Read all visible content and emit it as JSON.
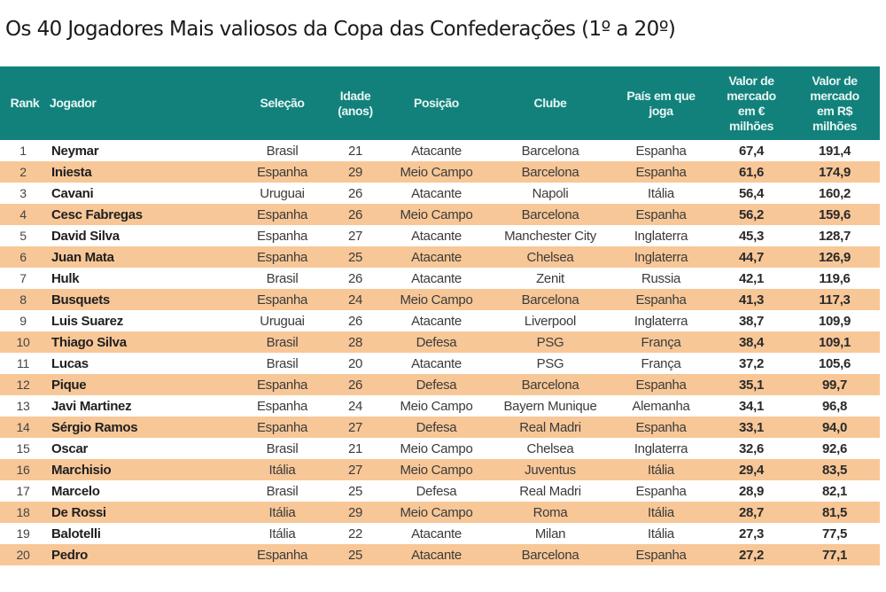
{
  "title": "Os 40 Jogadores Mais valiosos da Copa das Confederações (1º a 20º)",
  "colors": {
    "header_bg": "#12817b",
    "header_text": "#e8f6f4",
    "row_alt_bg": "#f8c797",
    "row_bg": "#ffffff"
  },
  "table": {
    "headers": {
      "rank": "Rank",
      "jogador": "Jogador",
      "selecao": "Seleção",
      "idade_1": "Idade",
      "idade_2": "(anos)",
      "posicao": "Posição",
      "clube": "Clube",
      "pais_1": "País em que",
      "pais_2": "joga",
      "eur_1": "Valor de",
      "eur_2": "mercado",
      "eur_3": "em €",
      "eur_4": "milhões",
      "brl_1": "Valor de",
      "brl_2": "mercado",
      "brl_3": "em R$",
      "brl_4": "milhões"
    },
    "rows": [
      {
        "rank": "1",
        "jogador": "Neymar",
        "selecao": "Brasil",
        "idade": "21",
        "posicao": "Atacante",
        "clube": "Barcelona",
        "pais": "Espanha",
        "eur": "67,4",
        "brl": "191,4"
      },
      {
        "rank": "2",
        "jogador": "Iniesta",
        "selecao": "Espanha",
        "idade": "29",
        "posicao": "Meio Campo",
        "clube": "Barcelona",
        "pais": "Espanha",
        "eur": "61,6",
        "brl": "174,9"
      },
      {
        "rank": "3",
        "jogador": "Cavani",
        "selecao": "Uruguai",
        "idade": "26",
        "posicao": "Atacante",
        "clube": "Napoli",
        "pais": "Itália",
        "eur": "56,4",
        "brl": "160,2"
      },
      {
        "rank": "4",
        "jogador": "Cesc Fabregas",
        "selecao": "Espanha",
        "idade": "26",
        "posicao": "Meio Campo",
        "clube": "Barcelona",
        "pais": "Espanha",
        "eur": "56,2",
        "brl": "159,6"
      },
      {
        "rank": "5",
        "jogador": "David Silva",
        "selecao": "Espanha",
        "idade": "27",
        "posicao": "Atacante",
        "clube": "Manchester City",
        "pais": "Inglaterra",
        "eur": "45,3",
        "brl": "128,7"
      },
      {
        "rank": "6",
        "jogador": "Juan Mata",
        "selecao": "Espanha",
        "idade": "25",
        "posicao": "Atacante",
        "clube": "Chelsea",
        "pais": "Inglaterra",
        "eur": "44,7",
        "brl": "126,9"
      },
      {
        "rank": "7",
        "jogador": "Hulk",
        "selecao": "Brasil",
        "idade": "26",
        "posicao": "Atacante",
        "clube": "Zenit",
        "pais": "Russia",
        "eur": "42,1",
        "brl": "119,6"
      },
      {
        "rank": "8",
        "jogador": "Busquets",
        "selecao": "Espanha",
        "idade": "24",
        "posicao": "Meio Campo",
        "clube": "Barcelona",
        "pais": "Espanha",
        "eur": "41,3",
        "brl": "117,3"
      },
      {
        "rank": "9",
        "jogador": "Luis Suarez",
        "selecao": "Uruguai",
        "idade": "26",
        "posicao": "Atacante",
        "clube": "Liverpool",
        "pais": "Inglaterra",
        "eur": "38,7",
        "brl": "109,9"
      },
      {
        "rank": "10",
        "jogador": "Thiago Silva",
        "selecao": "Brasil",
        "idade": "28",
        "posicao": "Defesa",
        "clube": "PSG",
        "pais": "França",
        "eur": "38,4",
        "brl": "109,1"
      },
      {
        "rank": "11",
        "jogador": "Lucas",
        "selecao": "Brasil",
        "idade": "20",
        "posicao": "Atacante",
        "clube": "PSG",
        "pais": "França",
        "eur": "37,2",
        "brl": "105,6"
      },
      {
        "rank": "12",
        "jogador": "Pique",
        "selecao": "Espanha",
        "idade": "26",
        "posicao": "Defesa",
        "clube": "Barcelona",
        "pais": "Espanha",
        "eur": "35,1",
        "brl": "99,7"
      },
      {
        "rank": "13",
        "jogador": "Javi Martinez",
        "selecao": "Espanha",
        "idade": "24",
        "posicao": "Meio Campo",
        "clube": "Bayern Munique",
        "pais": "Alemanha",
        "eur": "34,1",
        "brl": "96,8"
      },
      {
        "rank": "14",
        "jogador": "Sérgio Ramos",
        "selecao": "Espanha",
        "idade": "27",
        "posicao": "Defesa",
        "clube": "Real Madri",
        "pais": "Espanha",
        "eur": "33,1",
        "brl": "94,0"
      },
      {
        "rank": "15",
        "jogador": "Oscar",
        "selecao": "Brasil",
        "idade": "21",
        "posicao": "Meio Campo",
        "clube": "Chelsea",
        "pais": "Inglaterra",
        "eur": "32,6",
        "brl": "92,6"
      },
      {
        "rank": "16",
        "jogador": "Marchisio",
        "selecao": "Itália",
        "idade": "27",
        "posicao": "Meio Campo",
        "clube": "Juventus",
        "pais": "Itália",
        "eur": "29,4",
        "brl": "83,5"
      },
      {
        "rank": "17",
        "jogador": "Marcelo",
        "selecao": "Brasil",
        "idade": "25",
        "posicao": "Defesa",
        "clube": "Real Madri",
        "pais": "Espanha",
        "eur": "28,9",
        "brl": "82,1"
      },
      {
        "rank": "18",
        "jogador": "De Rossi",
        "selecao": "Itália",
        "idade": "29",
        "posicao": "Meio Campo",
        "clube": "Roma",
        "pais": "Itália",
        "eur": "28,7",
        "brl": "81,5"
      },
      {
        "rank": "19",
        "jogador": "Balotelli",
        "selecao": "Itália",
        "idade": "22",
        "posicao": "Atacante",
        "clube": "Milan",
        "pais": "Itália",
        "eur": "27,3",
        "brl": "77,5"
      },
      {
        "rank": "20",
        "jogador": "Pedro",
        "selecao": "Espanha",
        "idade": "25",
        "posicao": "Atacante",
        "clube": "Barcelona",
        "pais": "Espanha",
        "eur": "27,2",
        "brl": "77,1"
      }
    ]
  }
}
